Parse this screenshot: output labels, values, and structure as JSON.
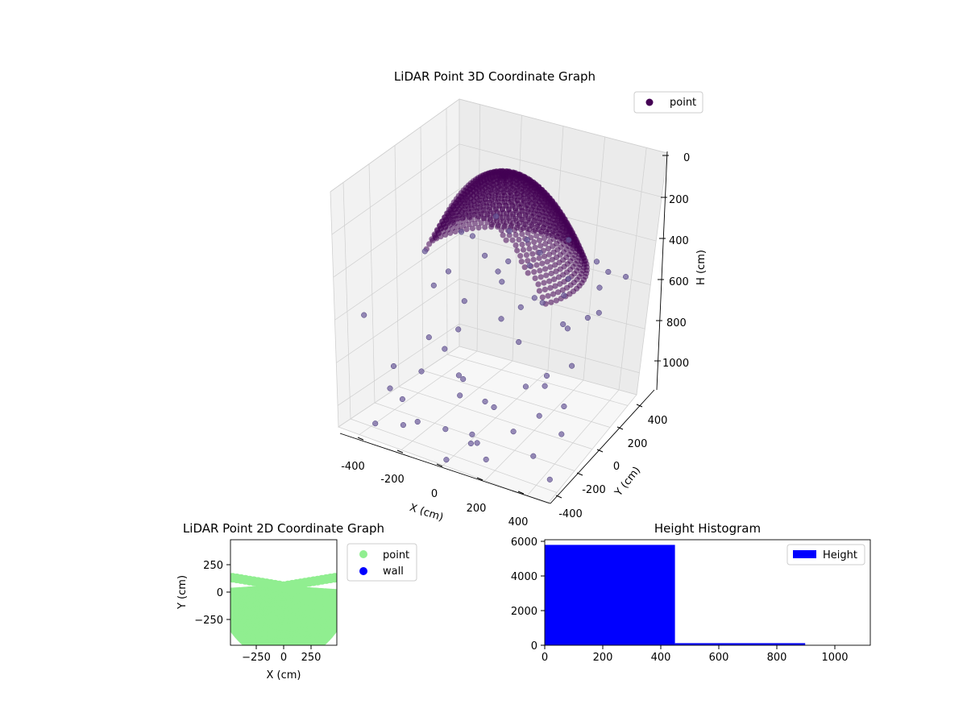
{
  "chart_data": [
    {
      "type": "scatter",
      "title": "LiDAR Point 3D Coordinate Graph",
      "xlabel": "X (cm)",
      "ylabel": "Y (cm)",
      "zlabel": "H (cm)",
      "xlim": [
        -500,
        500
      ],
      "ylim": [
        -500,
        500
      ],
      "zlim": [
        0,
        1100
      ],
      "z_inverted": true,
      "x_ticks": [
        "-400",
        "-200",
        "0",
        "200",
        "400"
      ],
      "y_ticks": [
        "-400",
        "-200",
        "0",
        "200",
        "400"
      ],
      "z_ticks": [
        "0",
        "200",
        "400",
        "600",
        "800",
        "1000"
      ],
      "grid": true,
      "legend": {
        "position": "top-right",
        "entries": [
          "point"
        ]
      },
      "series": [
        {
          "name": "point",
          "color": "#440154",
          "dome_points": {
            "description": "dense dome of rings centered near origin, radius up to ~400 cm, height 0-450 cm",
            "x": [
              -300,
              -200,
              -100,
              0,
              100,
              200,
              300,
              -250,
              -150,
              0,
              150,
              250,
              -150,
              0,
              150
            ],
            "y": [
              0,
              150,
              250,
              300,
              250,
              150,
              0,
              -150,
              -250,
              -300,
              -250,
              -150,
              0,
              0,
              0
            ],
            "h": [
              400,
              320,
              250,
              180,
              250,
              320,
              400,
              350,
              280,
              220,
              280,
              350,
              120,
              60,
              120
            ]
          },
          "scatter_points": {
            "x": [
              -480,
              -460,
              -420,
              -400,
              -380,
              -350,
              -330,
              -310,
              -290,
              -270,
              -250,
              -230,
              -210,
              -190,
              -170,
              -150,
              -130,
              -110,
              -90,
              -70,
              -50,
              -30,
              -10,
              10,
              30,
              50,
              70,
              90,
              110,
              130,
              150,
              170,
              190,
              210,
              230,
              250,
              270,
              290,
              310,
              330,
              350,
              370,
              390,
              410,
              430,
              450,
              470,
              -440,
              -360,
              -280,
              -200,
              -120,
              -40,
              40,
              120,
              200,
              280,
              360,
              440,
              -300,
              -100,
              100,
              300
            ],
            "y": [
              -300,
              350,
              100,
              -200,
              420,
              -450,
              250,
              -50,
              380,
              -350,
              150,
              -250,
              450,
              0,
              -400,
              300,
              -100,
              200,
              -300,
              400,
              -200,
              100,
              -450,
              350,
              -150,
              250,
              -350,
              50,
              420,
              -250,
              150,
              -420,
              300,
              -100,
              200,
              -300,
              400,
              -50,
              100,
              -200,
              300,
              -350,
              0,
              200,
              -150,
              350,
              -400,
              200,
              -300,
              450,
              -100,
              300,
              -250,
              150,
              -400,
              250,
              -50,
              350,
              -200,
              -300,
              420,
              -420,
              300
            ],
            "h": [
              650,
              700,
              500,
              900,
              550,
              1050,
              450,
              800,
              600,
              950,
              700,
              850,
              500,
              750,
              1000,
              650,
              900,
              550,
              1050,
              600,
              850,
              700,
              1100,
              500,
              950,
              650,
              1000,
              750,
              450,
              900,
              600,
              1050,
              550,
              850,
              700,
              950,
              500,
              800,
              650,
              900,
              550,
              1000,
              750,
              600,
              850,
              500,
              1050,
              700,
              950,
              450,
              800,
              550,
              900,
              650,
              1000,
              600,
              850,
              500,
              950,
              1100,
              500,
              1000,
              700
            ]
          }
        }
      ]
    },
    {
      "type": "scatter",
      "title": "LiDAR Point 2D Coordinate Graph",
      "xlabel": "X (cm)",
      "ylabel": "Y (cm)",
      "xlim": [
        -500,
        500
      ],
      "ylim": [
        -500,
        500
      ],
      "x_ticks": [
        "−250",
        "0",
        "250"
      ],
      "y_ticks": [
        "250",
        "0",
        "−250"
      ],
      "legend": {
        "position": "outside-right",
        "entries": [
          "point",
          "wall"
        ]
      },
      "series": [
        {
          "name": "point",
          "color": "#90ee90",
          "description": "dense concentric ring arcs filling the lower area"
        },
        {
          "name": "wall",
          "color": "#0000ff"
        }
      ]
    },
    {
      "type": "bar",
      "title": "Height Histogram",
      "xlim": [
        0,
        1125
      ],
      "ylim": [
        0,
        6100
      ],
      "x_ticks": [
        "0",
        "200",
        "400",
        "600",
        "800",
        "1000"
      ],
      "y_ticks": [
        "0",
        "2000",
        "4000",
        "6000"
      ],
      "legend": {
        "position": "top-right",
        "entries": [
          "Height"
        ]
      },
      "series": [
        {
          "name": "Height",
          "color": "#0000ff",
          "bins": [
            {
              "x0": 0,
              "x1": 450,
              "count": 5800
            },
            {
              "x0": 450,
              "x1": 900,
              "count": 120
            },
            {
              "x0": 900,
              "x1": 1125,
              "count": 0
            }
          ]
        }
      ]
    }
  ]
}
